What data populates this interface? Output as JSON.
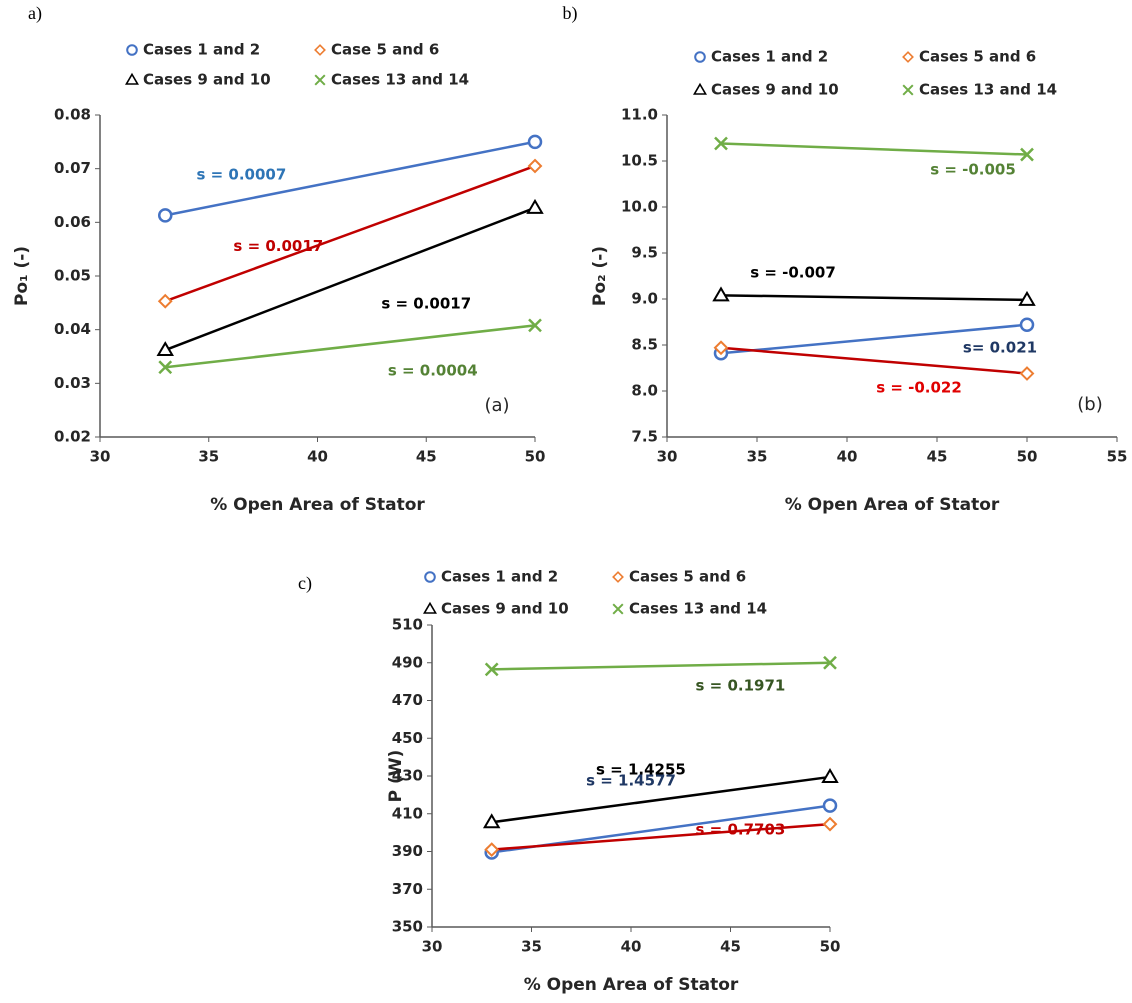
{
  "chart_data": [
    {
      "type": "line",
      "panel": "a)",
      "tag": "(a)",
      "xlabel": "% Open Area of Stator",
      "ylabel": "Po₁ (-)",
      "x": [
        33,
        50
      ],
      "xlim": [
        30,
        50
      ],
      "xticks": [
        30,
        35,
        40,
        45,
        50
      ],
      "ylim": [
        0.02,
        0.08
      ],
      "yticks": [
        0.02,
        0.03,
        0.04,
        0.05,
        0.06,
        0.07,
        0.08
      ],
      "series": [
        {
          "name": "Cases 1 and 2",
          "marker": "circle",
          "color": "#4472c4",
          "line_color": "#4472c4",
          "values": [
            0.0613,
            0.075
          ]
        },
        {
          "name": "Case 5 and 6",
          "marker": "diamond",
          "color": "#ed7d31",
          "line_color": "#c00000",
          "values": [
            0.0453,
            0.0705
          ]
        },
        {
          "name": "Cases 9 and 10",
          "marker": "triangle",
          "color": "#000000",
          "line_color": "#000000",
          "values": [
            0.0362,
            0.0627
          ]
        },
        {
          "name": "Cases 13 and 14",
          "marker": "x",
          "color": "#70ad47",
          "line_color": "#70ad47",
          "values": [
            0.033,
            0.0408
          ]
        }
      ],
      "annotations": [
        {
          "text": "s = 0.0007",
          "color": "#2e75b6"
        },
        {
          "text": "s = 0.0017",
          "color": "#c00000"
        },
        {
          "text": "s = 0.0017",
          "color": "#000000"
        },
        {
          "text": "s = 0.0004",
          "color": "#548235"
        }
      ]
    },
    {
      "type": "line",
      "panel": "b)",
      "tag": "(b)",
      "xlabel": "% Open Area of Stator",
      "ylabel": "Po₂ (-)",
      "x": [
        33,
        50
      ],
      "xlim": [
        30,
        55
      ],
      "xticks": [
        30,
        35,
        40,
        45,
        50,
        55
      ],
      "ylim": [
        7.5,
        11.0
      ],
      "yticks": [
        7.5,
        {
          "value": 8,
          "label": "8.0"
        },
        8.5,
        {
          "value": 9,
          "label": "9.0"
        },
        9.5,
        {
          "value": 10,
          "label": "10.0"
        },
        10.5,
        {
          "value": 11,
          "label": "11.0"
        }
      ],
      "series": [
        {
          "name": "Cases 1 and 2",
          "marker": "circle",
          "color": "#4472c4",
          "line_color": "#4472c4",
          "values": [
            8.41,
            8.72
          ]
        },
        {
          "name": "Cases 5 and 6",
          "marker": "diamond",
          "color": "#ed7d31",
          "line_color": "#c00000",
          "values": [
            8.47,
            8.19
          ]
        },
        {
          "name": "Cases 9 and 10",
          "marker": "triangle",
          "color": "#000000",
          "line_color": "#000000",
          "values": [
            9.04,
            8.99
          ]
        },
        {
          "name": "Cases 13 and 14",
          "marker": "x",
          "color": "#70ad47",
          "line_color": "#70ad47",
          "values": [
            10.69,
            10.57
          ]
        }
      ],
      "annotations": [
        {
          "text": "s = -0.005",
          "color": "#548235"
        },
        {
          "text": "s = -0.007",
          "color": "#000000"
        },
        {
          "text": "s= 0.021",
          "color": "#1f3864"
        },
        {
          "text": "s = -0.022",
          "color": "#e00000"
        }
      ]
    },
    {
      "type": "line",
      "panel": "c)",
      "xlabel": "% Open Area of Stator",
      "ylabel": "P (W)",
      "x": [
        33,
        50
      ],
      "xlim": [
        30,
        50
      ],
      "xticks": [
        30,
        35,
        40,
        45,
        50
      ],
      "ylim": [
        350,
        510
      ],
      "yticks": [
        350,
        370,
        390,
        410,
        430,
        450,
        470,
        490,
        510
      ],
      "series": [
        {
          "name": "Cases 1 and 2",
          "marker": "circle",
          "color": "#4472c4",
          "line_color": "#4472c4",
          "values": [
            389.5,
            414.3
          ]
        },
        {
          "name": "Cases 5 and 6",
          "marker": "diamond",
          "color": "#ed7d31",
          "line_color": "#c00000",
          "values": [
            391,
            404.5
          ]
        },
        {
          "name": "Cases 9 and 10",
          "marker": "triangle",
          "color": "#000000",
          "line_color": "#000000",
          "values": [
            405.5,
            429.5
          ]
        },
        {
          "name": "Cases 13 and 14",
          "marker": "x",
          "color": "#70ad47",
          "line_color": "#70ad47",
          "values": [
            486.5,
            490
          ]
        }
      ],
      "annotations": [
        {
          "text": "s = 0.1971",
          "color": "#375623"
        },
        {
          "text": "s = 1.4255",
          "color": "#000000"
        },
        {
          "text": "s = 1.4577",
          "color": "#1f3864"
        },
        {
          "text": "s = 0.7703",
          "color": "#c00000"
        }
      ]
    }
  ]
}
